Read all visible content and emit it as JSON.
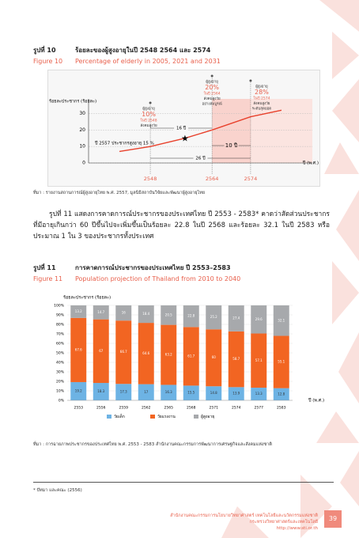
{
  "figure10": {
    "label": "รูปที่ 10",
    "title": "ร้อยละของผู้สูงอายุในปี 2548 2564 และ 2574",
    "label_en": "Figure 10",
    "title_en": "Percentage of elderly in 2005, 2021 and 2031",
    "chart": {
      "type": "line",
      "ylabel": "ร้อยละประชากร (ร้อยละ)",
      "xlabel": "ปี (พ.ศ.)",
      "x": [
        2540,
        2548,
        2557,
        2564,
        2574,
        2582
      ],
      "values": [
        7,
        10,
        15,
        20,
        28,
        32
      ],
      "color": "#e8412c",
      "xlim": [
        2532,
        2590
      ],
      "xticks": [
        2548,
        2564,
        2574
      ],
      "ylim": [
        0,
        35
      ],
      "yticks": [
        0,
        10,
        20,
        30
      ],
      "callouts": [
        [
          "ผู้สูงอายุ",
          "10%",
          "ในปี 2548",
          "สังคมสูงวัย"
        ],
        [
          "ผู้สูงอายุ",
          "20%",
          "ในปี 2564",
          "สังคมสูงวัย",
          "อย่างสมบูรณ์"
        ],
        [
          "ผู้สูงอายุ",
          "28%",
          "ในปี 2574",
          "สังคมสูงวัย",
          "ระดับสุดยอด"
        ]
      ],
      "note": "ปี 2557 ประชากรสูงอายุ 15 %",
      "spans": [
        "16 ปี",
        "10 ปี",
        "26 ปี"
      ]
    },
    "source": "ที่มา : รายงานสถานการณ์ผู้สูงอายุไทย พ.ศ. 2557, มูลนิธิสถาบันวิจัยและพัฒนาผู้สูงอายุไทย"
  },
  "paragraph": "รูปที่ 11 แสดงการคาดการณ์ประชากรของประเทศไทย ปี 2553 - 2583* คาดว่าสัดส่วนประชากรที่มีอายุเกินกว่า 60 ปีขึ้นไปจะเพิ่มขึ้นเป็นร้อยละ 22.8 ในปี 2568 และร้อยละ 32.1 ในปี 2583 หรือประมาณ 1 ใน 3 ของประชากรทั้งประเทศ",
  "figure11": {
    "label": "รูปที่ 11",
    "title": "การคาดการณ์ประชากรของประเทศไทย ปี 2553–2583",
    "label_en": "Figure 11",
    "title_en": "Population projection of Thailand from 2010 to 2040",
    "chart": {
      "type": "stacked-bar",
      "ylabel": "ร้อยละประชากร (ร้อยละ)",
      "xlabel": "ปี (พ.ศ.)",
      "categories": [
        "2553",
        "2556",
        "2559",
        "2562",
        "2565",
        "2568",
        "2571",
        "2574",
        "2577",
        "2583"
      ],
      "series": [
        {
          "name": "วัยเด็ก",
          "color": "#6db3e4",
          "values": [
            19.2,
            18.3,
            17.3,
            17.0,
            16.3,
            15.5,
            14.8,
            13.9,
            13.3,
            12.8
          ]
        },
        {
          "name": "วัยแรงงาน",
          "color": "#f26522",
          "values": [
            67.6,
            67.0,
            66.7,
            64.6,
            63.2,
            61.7,
            60.0,
            58.7,
            57.1,
            55.1
          ]
        },
        {
          "name": "ผู้สูงอายุ",
          "color": "#a7a9ac",
          "values": [
            13.2,
            14.7,
            16.0,
            18.4,
            20.5,
            22.8,
            25.2,
            27.4,
            29.6,
            32.1
          ]
        }
      ],
      "ylim": [
        0,
        100
      ],
      "yticks": [
        {
          "value": 0,
          "label": "0%"
        },
        {
          "value": 10,
          "label": "10%"
        },
        {
          "value": 20,
          "label": "20%"
        },
        {
          "value": 30,
          "label": "30%"
        },
        {
          "value": 40,
          "label": "40%"
        },
        {
          "value": 50,
          "label": "50%"
        },
        {
          "value": 60,
          "label": "60%"
        },
        {
          "value": 70,
          "label": "70%"
        },
        {
          "value": 80,
          "label": "80%"
        },
        {
          "value": 90,
          "label": "90%"
        },
        {
          "value": 100,
          "label": "100%"
        }
      ]
    },
    "source": "ที่มา : การฉายภาพประชากรของประเทศไทย พ.ศ. 2553 - 2583 สำนักงานคณะกรรมการพัฒนาการเศรษฐกิจและสังคมแห่งชาติ"
  },
  "footnote": "* ปัทมา และคณะ (2556)",
  "footer": {
    "lines": [
      "สำนักงานคณะกรรมการนโยบายวิทยาศาสตร์ เทคโนโลยีและนวัตกรรมแห่งชาติ",
      "กระทรวงวิทยาศาสตร์และเทคโนโลยี",
      "http://www.sti.or.th"
    ],
    "page": "39"
  }
}
